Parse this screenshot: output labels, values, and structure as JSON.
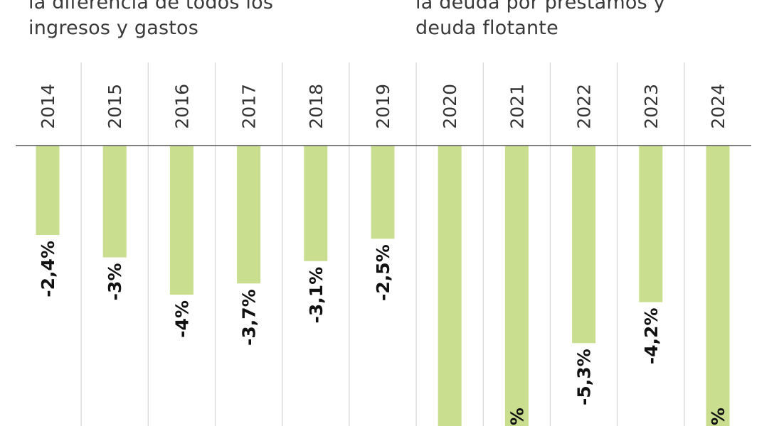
{
  "captions": {
    "left_lines": [
      "la diferencia de todos los",
      "ingresos y gastos"
    ],
    "right_lines": [
      "la deuda por préstamos y",
      "deuda flotante"
    ]
  },
  "colors": {
    "bar": "#c9de8f",
    "baseline": "#555555",
    "divider": "#d6d6d6",
    "label": "#111111",
    "year": "#333333"
  },
  "chart_data": {
    "type": "bar",
    "orientation": "vertical",
    "categories": [
      "2014",
      "2015",
      "2016",
      "2017",
      "2018",
      "2019",
      "2020",
      "2021",
      "2022",
      "2023",
      "2024"
    ],
    "values": [
      -2.4,
      -3.0,
      -4.0,
      -3.7,
      -3.1,
      -2.5,
      null,
      null,
      -5.3,
      -4.2,
      null
    ],
    "value_labels": [
      "-2,4%",
      "-3%",
      "-4%",
      "-3,7%",
      "-3,1%",
      "-2,5%",
      "",
      "%",
      "-5,3%",
      "-4,2%",
      "%"
    ],
    "unit": "%",
    "grid": false
  }
}
